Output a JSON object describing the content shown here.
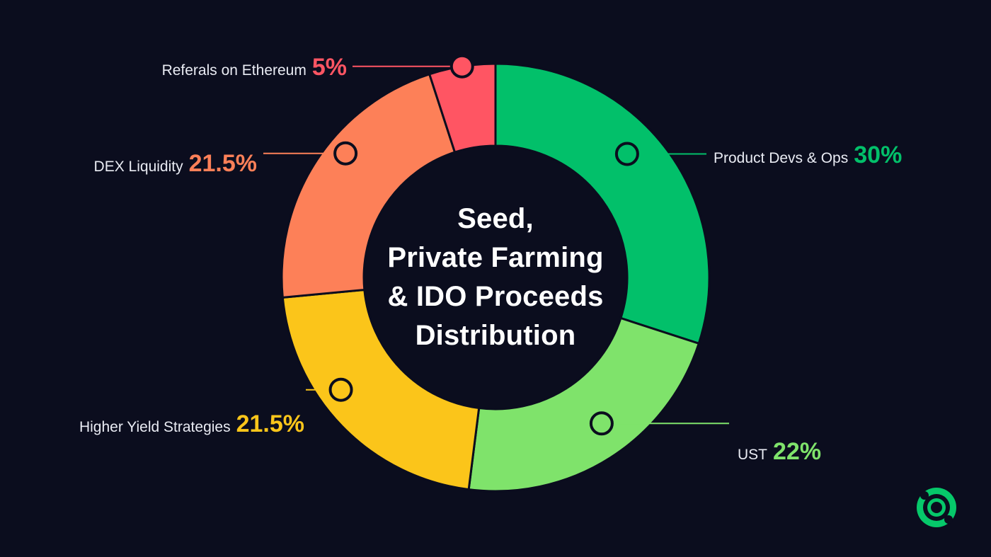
{
  "chart_data": {
    "type": "pie",
    "variant": "donut",
    "title_lines": [
      "Seed,",
      "Private Farming",
      "& IDO Proceeds",
      "Distribution"
    ],
    "slices": [
      {
        "label": "Product Devs & Ops",
        "value": 30,
        "display": "30%",
        "color": "#02c06a"
      },
      {
        "label": "UST",
        "value": 22,
        "display": "22%",
        "color": "#7fe36b"
      },
      {
        "label": "Higher Yield Strategies",
        "value": 21.5,
        "display": "21.5%",
        "color": "#fbc51a"
      },
      {
        "label": "DEX Liquidity",
        "value": 21.5,
        "display": "21.5%",
        "color": "#fd8058"
      },
      {
        "label": "Referals on Ethereum",
        "value": 5,
        "display": "5%",
        "color": "#ff5563"
      }
    ]
  },
  "colors": {
    "background": "#0b0d1e",
    "connector_dot_fill_stroke": "#0b0d1e",
    "logo_green": "#06c86a"
  },
  "logo": {
    "icon": "brand-logo-icon"
  }
}
